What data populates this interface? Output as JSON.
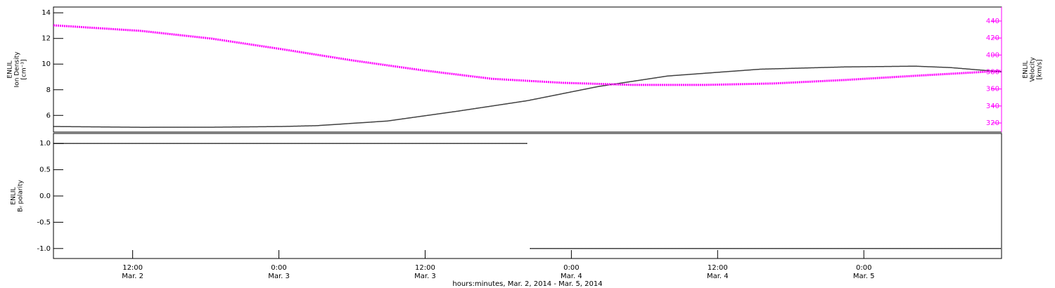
{
  "chart_data": [
    {
      "type": "line",
      "ylabel": [
        "ENLIL",
        "Ion Density",
        "[cm⁻³]"
      ],
      "y2label": [
        "ENLIL",
        "Velocity",
        "[km/s]"
      ],
      "xlim": [
        5.5,
        83.3
      ],
      "ylim": [
        4.7,
        14.45
      ],
      "yticks": [
        6,
        8,
        10,
        12,
        14
      ],
      "y2lim": [
        309.3,
        456.5
      ],
      "y2ticks": [
        320,
        340,
        360,
        380,
        400,
        420,
        440
      ],
      "y2color": "#ff00ff",
      "series": [
        {
          "color": "#000000",
          "x": [
            5.5,
            12.7,
            18.5,
            24.2,
            27.1,
            32.9,
            38.7,
            44.4,
            50.2,
            55.9,
            63.5,
            70.4,
            76.2,
            79.1,
            83.3
          ],
          "values": [
            5.13,
            5.07,
            5.08,
            5.13,
            5.2,
            5.56,
            6.33,
            7.15,
            8.25,
            9.07,
            9.6,
            9.78,
            9.84,
            9.73,
            9.4
          ]
        },
        {
          "color": "#ff00ff",
          "axis": "y2",
          "x": [
            5.5,
            12.7,
            18.5,
            24.2,
            30.0,
            35.8,
            41.5,
            47.3,
            53.1,
            58.9,
            64.6,
            70.4,
            76.2,
            83.3
          ],
          "values": [
            435,
            428.4,
            419.3,
            407,
            393.7,
            382,
            372,
            367.3,
            364.8,
            364.8,
            366.5,
            370.6,
            375.5,
            381.3
          ]
        }
      ]
    },
    {
      "type": "line",
      "ylabel": [
        "ENLIL",
        "Bᵣ polarity"
      ],
      "xlabel": "hours:minutes, Mar.  2, 2014 - Mar.  5, 2014",
      "xlim": [
        5.5,
        83.3
      ],
      "xticks": [
        {
          "value": 12,
          "label": "12:00",
          "sublabel": "Mar. 2"
        },
        {
          "value": 24,
          "label": "0:00",
          "sublabel": "Mar. 3"
        },
        {
          "value": 36,
          "label": "12:00",
          "sublabel": "Mar. 3"
        },
        {
          "value": 48,
          "label": "0:00",
          "sublabel": "Mar. 4"
        },
        {
          "value": 60,
          "label": "12:00",
          "sublabel": "Mar. 4"
        },
        {
          "value": 72,
          "label": "0:00",
          "sublabel": "Mar. 5"
        }
      ],
      "ylim": [
        -1.19,
        1.19
      ],
      "yticks": [
        {
          "value": -1,
          "label": "-1.0"
        },
        {
          "value": -0.5,
          "label": "-0.5"
        },
        {
          "value": 0,
          "label": "0.0"
        },
        {
          "value": 0.5,
          "label": "0.5"
        },
        {
          "value": 1,
          "label": "1.0"
        }
      ],
      "series": [
        {
          "color": "#000000",
          "x": [
            5.5,
            44.4,
            44.5,
            44.6,
            83.3
          ],
          "values": [
            1,
            1,
            null,
            -1,
            -1
          ]
        }
      ]
    }
  ]
}
